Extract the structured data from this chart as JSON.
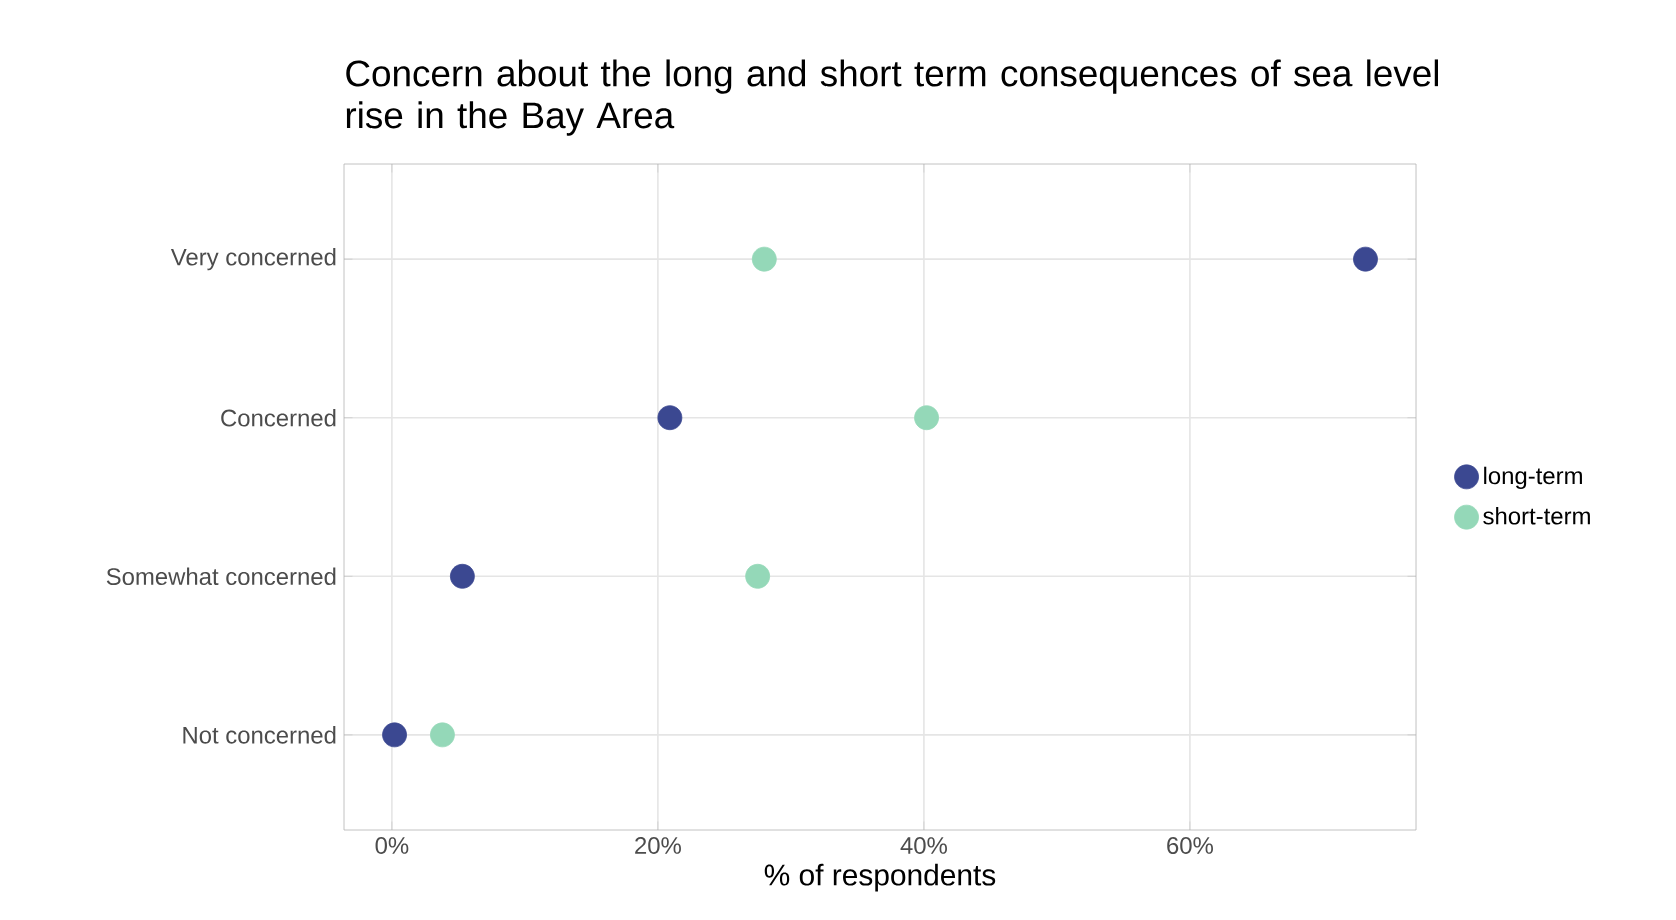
{
  "chart_data": {
    "type": "scatter",
    "orientation": "horizontal",
    "title": "Concern about the long and short term consequences of sea level rise in the Bay Area",
    "xlabel": "% of respondents",
    "categories": [
      "Very concerned",
      "Concerned",
      "Somewhat concerned",
      "Not concerned"
    ],
    "series": [
      {
        "name": "long-term",
        "color": "#3b4891",
        "values": [
          73.2,
          20.9,
          5.3,
          0.2
        ]
      },
      {
        "name": "short-term",
        "color": "#94d8b8",
        "values": [
          28.0,
          40.2,
          27.5,
          3.8
        ]
      }
    ],
    "xlim": [
      -3.6,
      77
    ],
    "xticks": [
      {
        "value": 0,
        "label": "0%"
      },
      {
        "value": 20,
        "label": "20%"
      },
      {
        "value": 40,
        "label": "40%"
      },
      {
        "value": 60,
        "label": "60%"
      }
    ],
    "grid": true,
    "legend": "right",
    "marker": "circle"
  }
}
